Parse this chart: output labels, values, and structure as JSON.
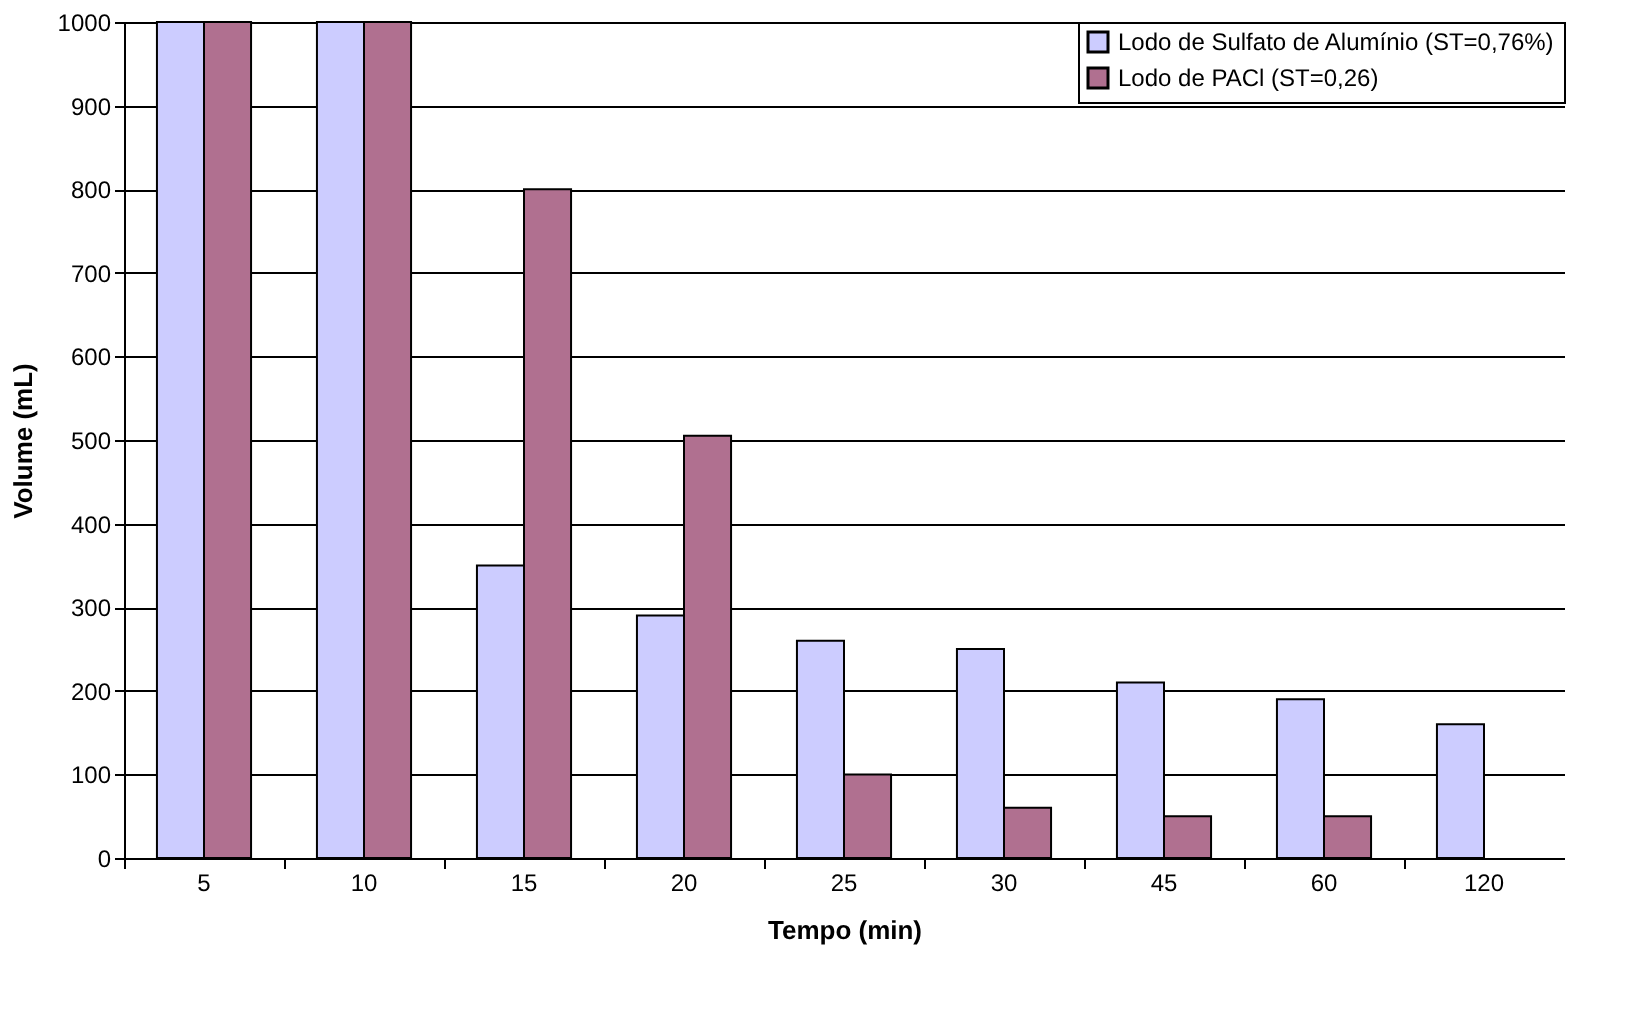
{
  "chart_data": {
    "type": "bar",
    "xlabel": "Tempo (min)",
    "ylabel": "Volume (mL)",
    "categories": [
      "5",
      "10",
      "15",
      "20",
      "25",
      "30",
      "45",
      "60",
      "120"
    ],
    "series": [
      {
        "name": "Lodo de Sulfato de Alumínio (ST=0,76%)",
        "color": "#ccccff",
        "values": [
          1000,
          1000,
          350,
          290,
          260,
          250,
          210,
          190,
          160
        ]
      },
      {
        "name": "Lodo de PACl (ST=0,26)",
        "color": "#b07090",
        "values": [
          1000,
          1000,
          800,
          505,
          100,
          60,
          50,
          50,
          null
        ]
      }
    ],
    "ylim": [
      0,
      1000
    ],
    "yticks": [
      0,
      100,
      200,
      300,
      400,
      500,
      600,
      700,
      800,
      900,
      1000
    ],
    "grid": "y",
    "legend": "top right"
  }
}
